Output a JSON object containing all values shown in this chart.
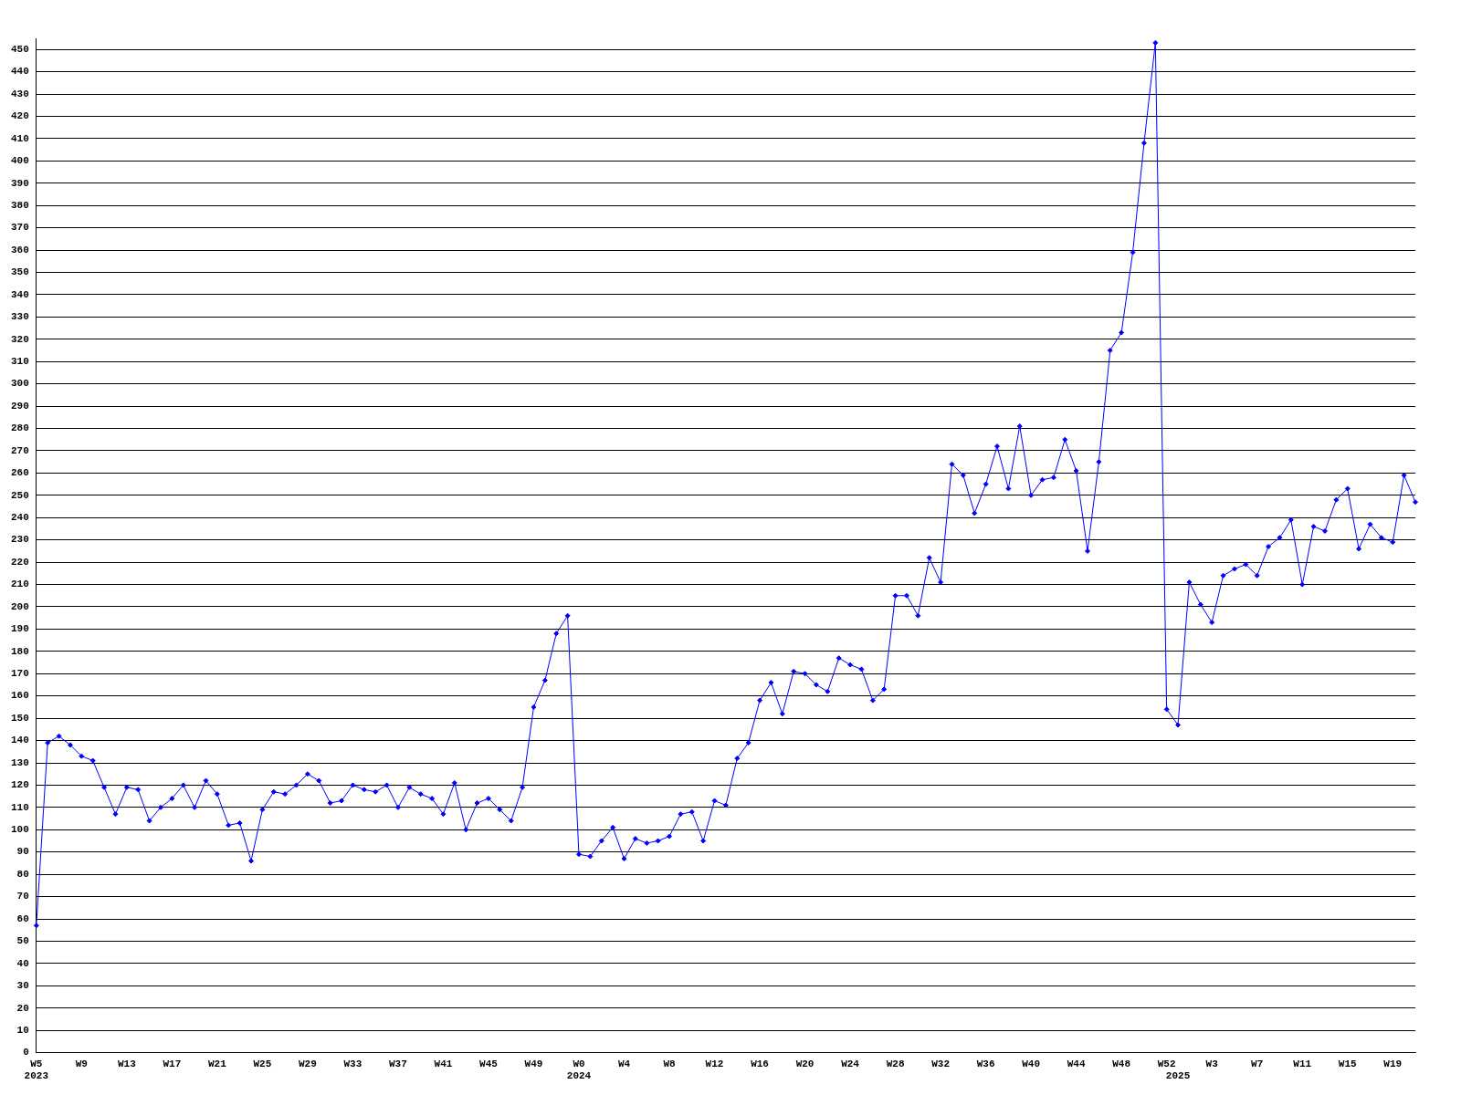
{
  "chart_data": {
    "type": "line",
    "categories": [
      "W5\n2023",
      null,
      null,
      null,
      "W9",
      null,
      null,
      null,
      "W13",
      null,
      null,
      null,
      "W17",
      null,
      null,
      null,
      "W21",
      null,
      null,
      null,
      "W25",
      null,
      null,
      null,
      "W29",
      null,
      null,
      null,
      "W33",
      null,
      null,
      null,
      "W37",
      null,
      null,
      null,
      "W41",
      null,
      null,
      null,
      "W45",
      null,
      null,
      null,
      "W49",
      null,
      null,
      null,
      "W0\n2024",
      null,
      null,
      null,
      "W4",
      null,
      null,
      null,
      "W8",
      null,
      null,
      null,
      "W12",
      null,
      null,
      null,
      "W16",
      null,
      null,
      null,
      "W20",
      null,
      null,
      null,
      "W24",
      null,
      null,
      null,
      "W28",
      null,
      null,
      null,
      "W32",
      null,
      null,
      null,
      "W36",
      null,
      null,
      null,
      "W40",
      null,
      null,
      null,
      "W44",
      null,
      null,
      null,
      "W48",
      null,
      null,
      null,
      "W52",
      "\n2025",
      null,
      null,
      "W3",
      null,
      null,
      null,
      "W7",
      null,
      null,
      null,
      "W11",
      null,
      null,
      null,
      "W15",
      null,
      null,
      null,
      "W19",
      null,
      null
    ],
    "series": [
      {
        "color": "#0000ff",
        "values": [
          57,
          139,
          142,
          138,
          133,
          131,
          119,
          107,
          119,
          118,
          104,
          110,
          114,
          120,
          110,
          122,
          116,
          102,
          103,
          86,
          109,
          117,
          116,
          120,
          125,
          122,
          112,
          113,
          120,
          118,
          117,
          120,
          110,
          119,
          116,
          114,
          107,
          121,
          100,
          112,
          114,
          109,
          104,
          119,
          155,
          167,
          188,
          196,
          89,
          88,
          95,
          101,
          87,
          96,
          94,
          95,
          97,
          107,
          108,
          95,
          113,
          111,
          132,
          139,
          158,
          166,
          152,
          171,
          170,
          165,
          162,
          177,
          174,
          172,
          158,
          163,
          205,
          205,
          196,
          222,
          211,
          264,
          259,
          242,
          255,
          272,
          253,
          281,
          250,
          257,
          258,
          275,
          261,
          225,
          265,
          315,
          323,
          359,
          408,
          453,
          154,
          147,
          211,
          201,
          193,
          214,
          217,
          219,
          214,
          227,
          231,
          239,
          210,
          236,
          234,
          248,
          253,
          226,
          237,
          231,
          229,
          259,
          247
        ]
      }
    ],
    "ylim": [
      0,
      455
    ],
    "yticks": [
      0,
      10,
      20,
      30,
      40,
      50,
      60,
      70,
      80,
      90,
      100,
      110,
      120,
      130,
      140,
      150,
      160,
      170,
      180,
      190,
      200,
      210,
      220,
      230,
      240,
      250,
      260,
      270,
      280,
      290,
      300,
      310,
      320,
      330,
      340,
      350,
      360,
      370,
      380,
      390,
      400,
      410,
      420,
      430,
      440,
      450
    ],
    "grid": "y",
    "legend": false,
    "marker": "diamond",
    "line_style": "solid"
  }
}
